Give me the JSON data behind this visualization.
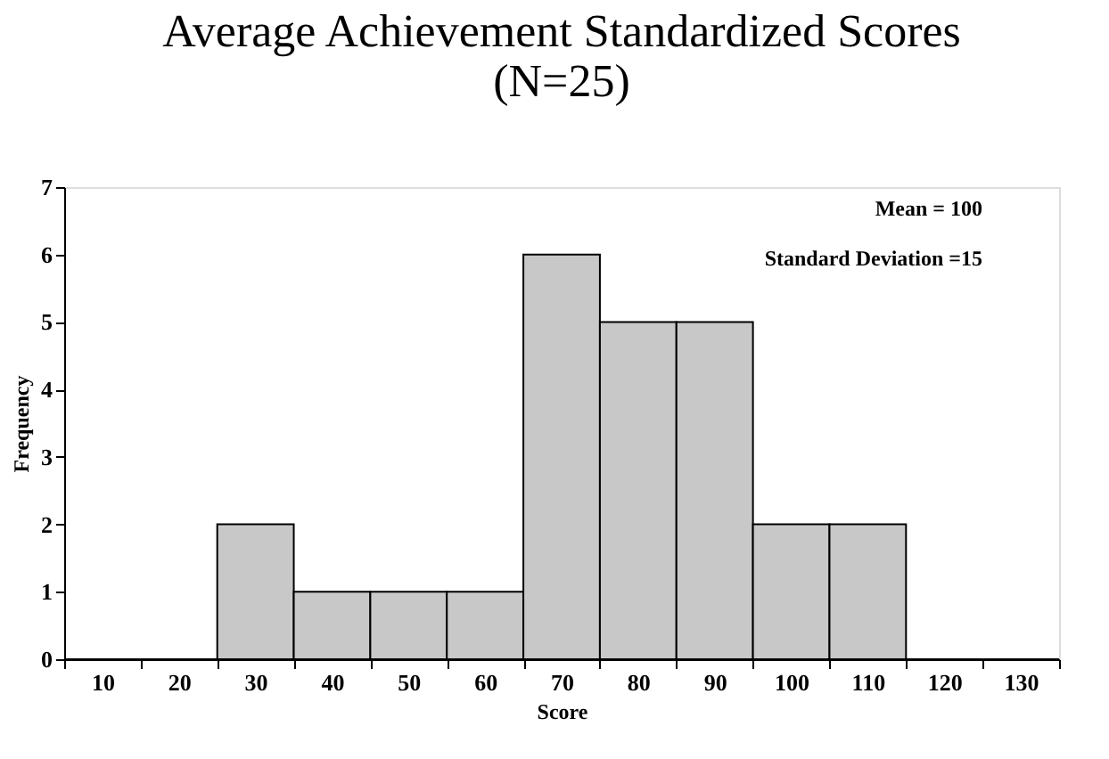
{
  "chart_data": {
    "type": "bar",
    "title": [
      "Average Achievement Standardized Scores",
      "(N=25)"
    ],
    "xlabel": "Score",
    "ylabel": "Frequency",
    "categories": [
      "10",
      "20",
      "30",
      "40",
      "50",
      "60",
      "70",
      "80",
      "90",
      "100",
      "110",
      "120",
      "130"
    ],
    "values": [
      0,
      0,
      2,
      1,
      1,
      1,
      6,
      5,
      5,
      2,
      2,
      0,
      0
    ],
    "color": "#c8c8c8",
    "ylim": [
      0,
      7
    ],
    "yticks": [
      0,
      1,
      2,
      3,
      4,
      5,
      6,
      7
    ],
    "grid": false,
    "annotations": [
      "Mean = 100",
      "Standard Deviation =15"
    ]
  }
}
